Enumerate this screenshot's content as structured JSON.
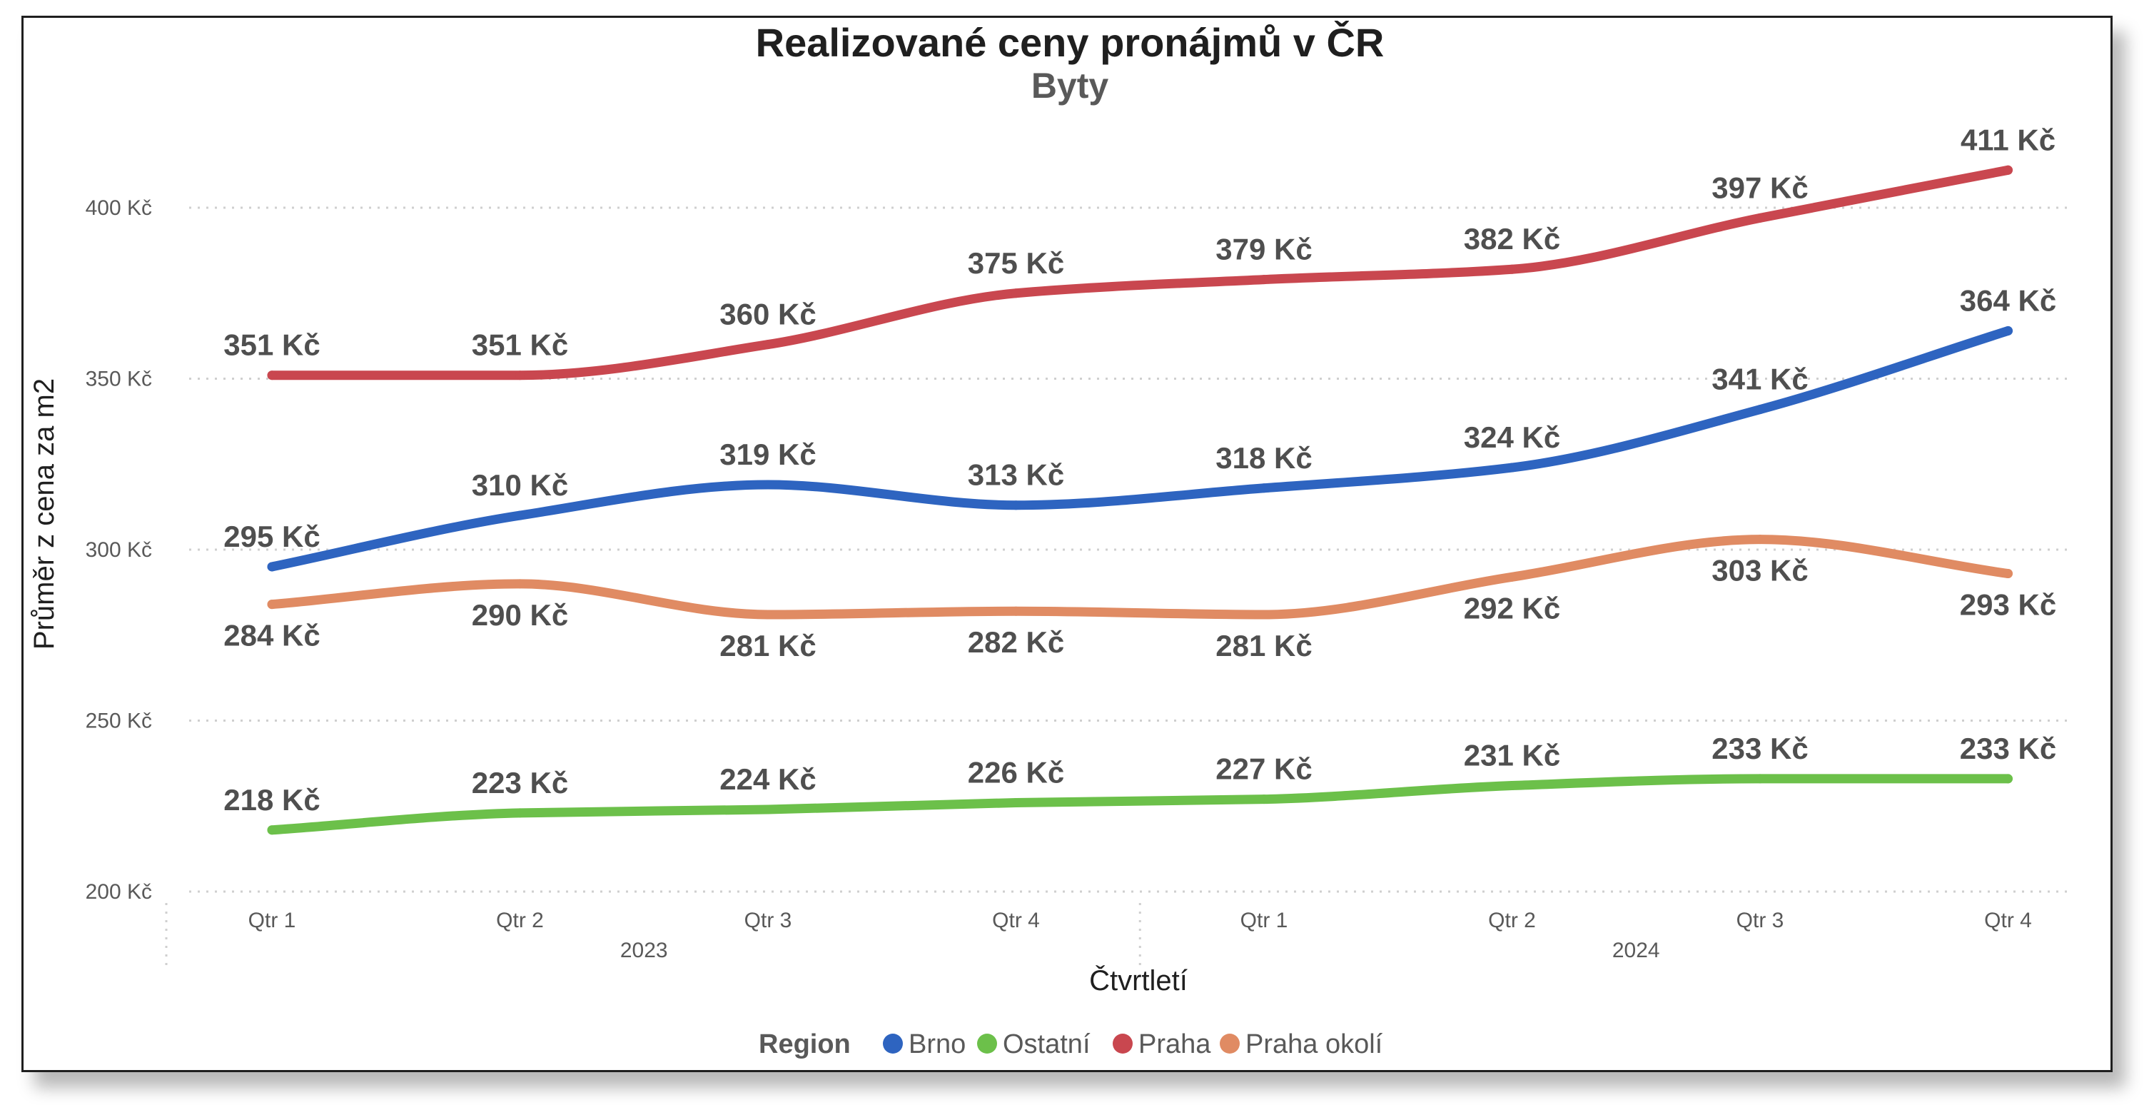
{
  "chart_data": {
    "type": "line",
    "title": "Realizované ceny pronájmů v ČR",
    "subtitle": "Byty",
    "xlabel": "Čtvrtletí",
    "ylabel": "Průměr z cena za m2",
    "ylim": [
      200,
      420
    ],
    "yticks": [
      200,
      250,
      300,
      350,
      400
    ],
    "ytick_labels": [
      "200 Kč",
      "250 Kč",
      "300 Kč",
      "350 Kč",
      "400 Kč"
    ],
    "categories": [
      "Qtr 1",
      "Qtr 2",
      "Qtr 3",
      "Qtr 4",
      "Qtr 1",
      "Qtr 2",
      "Qtr 3",
      "Qtr 4"
    ],
    "year_groups": [
      {
        "label": "2023",
        "start": 0,
        "end": 3
      },
      {
        "label": "2024",
        "start": 4,
        "end": 7
      }
    ],
    "grid": true,
    "legend": {
      "title": "Region",
      "position": "bottom"
    },
    "series": [
      {
        "name": "Brno",
        "color": "#2e64c0",
        "values": [
          295,
          310,
          319,
          313,
          318,
          324,
          341,
          364
        ],
        "labels": [
          "295 Kč",
          "310 Kč",
          "319 Kč",
          "313 Kč",
          "318 Kč",
          "324 Kč",
          "341 Kč",
          "364 Kč"
        ]
      },
      {
        "name": "Ostatní",
        "color": "#6cc04a",
        "values": [
          218,
          223,
          224,
          226,
          227,
          231,
          233,
          233
        ],
        "labels": [
          "218 Kč",
          "223 Kč",
          "224 Kč",
          "226 Kč",
          "227 Kč",
          "231 Kč",
          "233 Kč",
          "233 Kč"
        ]
      },
      {
        "name": "Praha",
        "color": "#c9474f",
        "values": [
          351,
          351,
          360,
          375,
          379,
          382,
          397,
          411
        ],
        "labels": [
          "351 Kč",
          "351 Kč",
          "360 Kč",
          "375 Kč",
          "379 Kč",
          "382 Kč",
          "397 Kč",
          "411 Kč"
        ]
      },
      {
        "name": "Praha okolí",
        "color": "#e08b63",
        "values": [
          284,
          290,
          281,
          282,
          281,
          292,
          303,
          293
        ],
        "labels": [
          "284 Kč",
          "290 Kč",
          "281 Kč",
          "282 Kč",
          "281 Kč",
          "292 Kč",
          "303 Kč",
          "293 Kč"
        ]
      }
    ]
  }
}
